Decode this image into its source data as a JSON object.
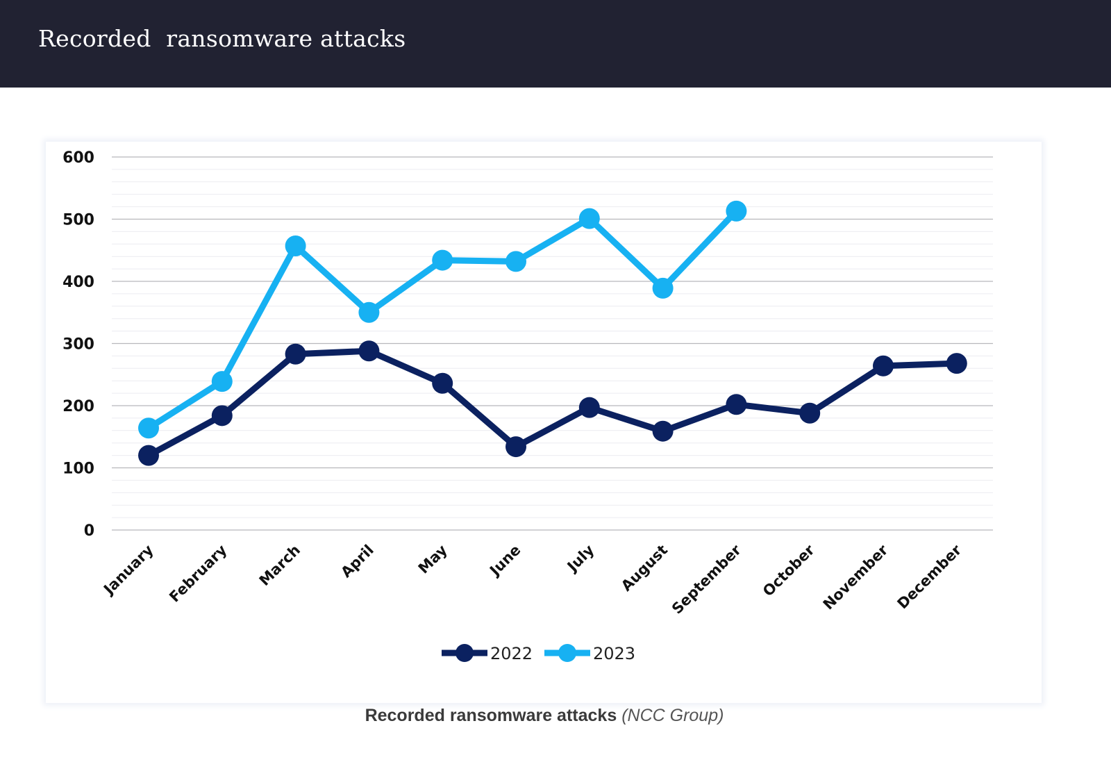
{
  "header": {
    "title": "Recorded  ransomware attacks"
  },
  "caption": {
    "main": "Recorded ransomware attacks",
    "source": "(NCC Group)"
  },
  "chart_data": {
    "type": "line",
    "title": "",
    "xlabel": "",
    "ylabel": "",
    "categories": [
      "January",
      "February",
      "March",
      "April",
      "May",
      "June",
      "July",
      "August",
      "September",
      "October",
      "November",
      "December"
    ],
    "ylim": [
      0,
      600
    ],
    "yticks": [
      0,
      100,
      200,
      300,
      400,
      500,
      600
    ],
    "grid": true,
    "legend_position": "bottom",
    "series": [
      {
        "name": "2022",
        "color": "#0b2160",
        "values": [
          120,
          184,
          283,
          288,
          236,
          134,
          197,
          159,
          202,
          188,
          264,
          268
        ]
      },
      {
        "name": "2023",
        "color": "#17b1f2",
        "values": [
          164,
          239,
          457,
          350,
          434,
          432,
          501,
          389,
          513,
          null,
          null,
          null
        ]
      }
    ]
  }
}
